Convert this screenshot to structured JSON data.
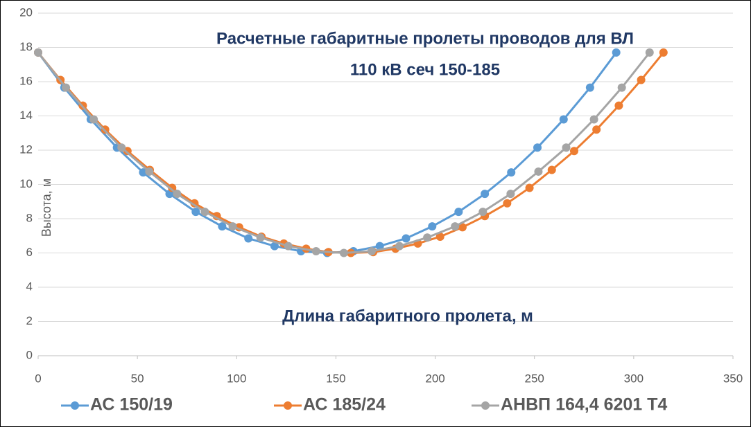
{
  "chart_data": {
    "type": "line",
    "title": "Расчетные габаритные пролеты проводов для ВЛ 110 кВ сеч 150-185",
    "title_lines": [
      "Расчетные габаритные пролеты проводов для ВЛ",
      "110 кВ сеч 150-185"
    ],
    "xlabel": "Длина габаритного пролета, м",
    "ylabel": "Высота, м",
    "xlim": [
      0,
      350
    ],
    "xticks": [
      0,
      50,
      100,
      150,
      200,
      250,
      300,
      350
    ],
    "ylim": [
      0,
      20
    ],
    "yticks": [
      0,
      2,
      4,
      6,
      8,
      10,
      12,
      14,
      16,
      18,
      20
    ],
    "grid": true,
    "legend": "bottom",
    "series": [
      {
        "name": "АС 150/19",
        "color": "#5b9bd5",
        "x": [
          0,
          13.2,
          26.5,
          39.7,
          52.9,
          66.2,
          79.4,
          92.7,
          105.9,
          119.1,
          132.4,
          145.6,
          158.8,
          172.1,
          185.3,
          198.5,
          211.8,
          225,
          238.3,
          251.5,
          264.7,
          278,
          291.2
        ],
        "values": [
          17.7,
          15.65,
          13.8,
          12.15,
          10.7,
          9.45,
          8.4,
          7.55,
          6.85,
          6.4,
          6.1,
          6.0,
          6.1,
          6.4,
          6.85,
          7.55,
          8.4,
          9.45,
          10.7,
          12.15,
          13.8,
          15.65,
          17.7
        ]
      },
      {
        "name": "АС 185/24",
        "color": "#ed7d31",
        "x": [
          0,
          11.25,
          22.5,
          33.75,
          45,
          56.25,
          67.5,
          78.75,
          90,
          101.25,
          112.5,
          123.75,
          135,
          146.25,
          157.5,
          168.75,
          180,
          191.25,
          202.5,
          213.75,
          225,
          236.25,
          247.5,
          258.75,
          270,
          281.25,
          292.5,
          303.75,
          315
        ],
        "values": [
          17.7,
          16.1,
          14.6,
          13.2,
          11.95,
          10.85,
          9.8,
          8.9,
          8.15,
          7.5,
          6.95,
          6.55,
          6.25,
          6.05,
          6.0,
          6.05,
          6.25,
          6.55,
          6.95,
          7.5,
          8.15,
          8.9,
          9.8,
          10.85,
          11.95,
          13.2,
          14.6,
          16.1,
          17.7
        ]
      },
      {
        "name": "АНВП 164,4 6201 Т4",
        "color": "#a5a5a5",
        "x": [
          0,
          14,
          28,
          42,
          56,
          70,
          84,
          98,
          112,
          126,
          140,
          154,
          168,
          182,
          196,
          210,
          224,
          238,
          252,
          266,
          280,
          294,
          308
        ],
        "values": [
          17.7,
          15.65,
          13.8,
          12.15,
          10.75,
          9.45,
          8.4,
          7.55,
          6.9,
          6.4,
          6.1,
          6.0,
          6.1,
          6.4,
          6.9,
          7.55,
          8.4,
          9.45,
          10.75,
          12.15,
          13.8,
          15.65,
          17.7
        ]
      }
    ]
  }
}
